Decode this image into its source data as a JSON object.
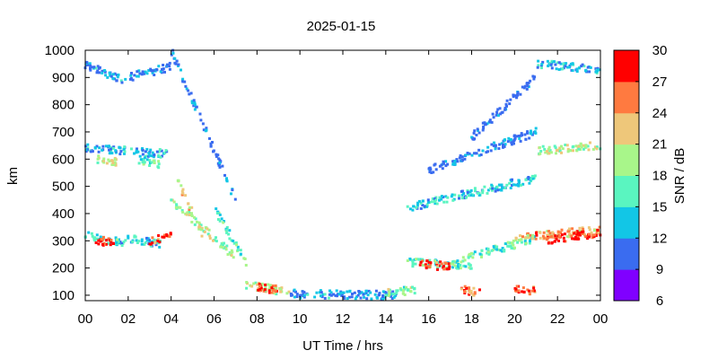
{
  "chart_data": {
    "type": "scatter",
    "title": "2025-01-15",
    "xlabel": "UT Time / hrs",
    "ylabel": "km",
    "xlim": [
      0,
      24
    ],
    "ylim": [
      80,
      1000
    ],
    "x_ticks": [
      "00",
      "02",
      "04",
      "06",
      "08",
      "10",
      "12",
      "14",
      "16",
      "18",
      "20",
      "22",
      "00"
    ],
    "y_ticks": [
      100,
      200,
      300,
      400,
      500,
      600,
      700,
      800,
      900,
      1000
    ],
    "grid": false,
    "colorbar": {
      "label": "SNR / dB",
      "range": [
        6,
        30
      ],
      "ticks": [
        6,
        9,
        12,
        15,
        18,
        21,
        24,
        27,
        30
      ],
      "colors": [
        "#8000ff",
        "#3a6cf0",
        "#12c6e6",
        "#5af5c0",
        "#a8f68a",
        "#eec77a",
        "#ff7a40",
        "#ff0000"
      ]
    },
    "series": [
      {
        "x_range": [
          0.0,
          1.8
        ],
        "y_start": 320,
        "y_end": 290,
        "snr": 15
      },
      {
        "x_range": [
          0.5,
          1.5
        ],
        "y_start": 300,
        "y_end": 295,
        "snr": 28
      },
      {
        "x_range": [
          1.8,
          3.5
        ],
        "y_start": 310,
        "y_end": 290,
        "snr": 14
      },
      {
        "x_range": [
          3.0,
          4.0
        ],
        "y_start": 300,
        "y_end": 320,
        "snr": 26
      },
      {
        "x_range": [
          0.0,
          3.8
        ],
        "y_start": 640,
        "y_end": 620,
        "snr": 13
      },
      {
        "x_range": [
          0.5,
          1.5
        ],
        "y_start": 600,
        "y_end": 590,
        "snr": 20
      },
      {
        "x_range": [
          2.5,
          3.5
        ],
        "y_start": 600,
        "y_end": 580,
        "snr": 17
      },
      {
        "x_range": [
          0.0,
          2.0
        ],
        "y_start": 950,
        "y_end": 880,
        "snr": 12
      },
      {
        "x_range": [
          2.0,
          4.0
        ],
        "y_start": 900,
        "y_end": 940,
        "snr": 11
      },
      {
        "x_range": [
          4.0,
          7.0
        ],
        "y_start": 450,
        "y_end": 240,
        "snr": 19
      },
      {
        "x_range": [
          4.3,
          5.5
        ],
        "y_start": 520,
        "y_end": 320,
        "snr": 22
      },
      {
        "x_range": [
          6.0,
          7.5
        ],
        "y_start": 420,
        "y_end": 220,
        "snr": 16
      },
      {
        "x_range": [
          7.5,
          9.5
        ],
        "y_start": 140,
        "y_end": 110,
        "snr": 20
      },
      {
        "x_range": [
          8.0,
          9.0
        ],
        "y_start": 130,
        "y_end": 120,
        "snr": 28
      },
      {
        "x_range": [
          9.5,
          14.5
        ],
        "y_start": 105,
        "y_end": 100,
        "snr": 12
      },
      {
        "x_range": [
          14.0,
          15.5
        ],
        "y_start": 110,
        "y_end": 120,
        "snr": 18
      },
      {
        "x_range": [
          4.0,
          7.0
        ],
        "y_start": 1000,
        "y_end": 450,
        "snr": 10
      },
      {
        "x_range": [
          15.0,
          18.0
        ],
        "y_start": 220,
        "y_end": 210,
        "snr": 16
      },
      {
        "x_range": [
          15.5,
          17.0
        ],
        "y_start": 215,
        "y_end": 205,
        "snr": 27
      },
      {
        "x_range": [
          17.5,
          21.0
        ],
        "y_start": 230,
        "y_end": 310,
        "snr": 17
      },
      {
        "x_range": [
          20.0,
          24.0
        ],
        "y_start": 310,
        "y_end": 340,
        "snr": 24
      },
      {
        "x_range": [
          21.5,
          24.0
        ],
        "y_start": 300,
        "y_end": 330,
        "snr": 29
      },
      {
        "x_range": [
          17.5,
          18.5
        ],
        "y_start": 120,
        "y_end": 110,
        "snr": 25
      },
      {
        "x_range": [
          20.0,
          21.0
        ],
        "y_start": 120,
        "y_end": 115,
        "snr": 26
      },
      {
        "x_range": [
          15.0,
          21.0
        ],
        "y_start": 420,
        "y_end": 530,
        "snr": 14
      },
      {
        "x_range": [
          21.0,
          24.0
        ],
        "y_start": 630,
        "y_end": 650,
        "snr": 20
      },
      {
        "x_range": [
          16.0,
          21.0
        ],
        "y_start": 560,
        "y_end": 700,
        "snr": 10
      },
      {
        "x_range": [
          18.0,
          21.0
        ],
        "y_start": 680,
        "y_end": 900,
        "snr": 10
      },
      {
        "x_range": [
          21.0,
          24.0
        ],
        "y_start": 950,
        "y_end": 930,
        "snr": 13
      }
    ]
  }
}
